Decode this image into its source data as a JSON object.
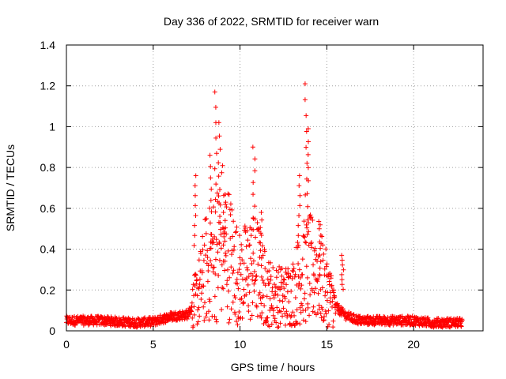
{
  "chart_data": {
    "type": "scatter",
    "title": "Day 336 of 2022, SRMTID for receiver warn",
    "xlabel": "GPS time / hours",
    "ylabel": "SRMTID / TECUs",
    "xlim": [
      0,
      24
    ],
    "ylim": [
      0,
      1.4
    ],
    "xticks": [
      0,
      5,
      10,
      15,
      20
    ],
    "yticks": [
      0,
      0.2,
      0.4,
      0.6,
      0.8,
      1.0,
      1.2,
      1.4
    ],
    "ytick_labels": [
      "0",
      "0.2",
      "0.4",
      "0.6",
      "0.8",
      "1",
      "1.2",
      "1.4"
    ],
    "grid": true,
    "marker": "+",
    "series": [
      {
        "name": "SRMTID",
        "color": "#ff0000",
        "profile": {
          "x": [
            0,
            1,
            2,
            3,
            4,
            5,
            6,
            7,
            7.6,
            8,
            8.5,
            9,
            9.5,
            10,
            10.5,
            11,
            11.5,
            12,
            12.5,
            13,
            13.5,
            14,
            14.5,
            15,
            15.5,
            16,
            16.5,
            17,
            18,
            19,
            20,
            21,
            22,
            22.8
          ],
          "y": [
            0.05,
            0.05,
            0.05,
            0.045,
            0.04,
            0.045,
            0.07,
            0.08,
            0.18,
            0.3,
            0.35,
            0.45,
            0.35,
            0.25,
            0.3,
            0.3,
            0.2,
            0.17,
            0.17,
            0.18,
            0.28,
            0.3,
            0.3,
            0.2,
            0.12,
            0.08,
            0.06,
            0.05,
            0.05,
            0.05,
            0.05,
            0.04,
            0.04,
            0.04
          ]
        },
        "peaks": [
          {
            "x": 7.4,
            "y": 0.76
          },
          {
            "x": 8.3,
            "y": 0.86
          },
          {
            "x": 8.6,
            "y": 1.17
          },
          {
            "x": 8.8,
            "y": 1.02
          },
          {
            "x": 9.1,
            "y": 0.62
          },
          {
            "x": 10.8,
            "y": 0.9
          },
          {
            "x": 11.2,
            "y": 0.58
          },
          {
            "x": 13.4,
            "y": 0.76
          },
          {
            "x": 13.8,
            "y": 1.21
          },
          {
            "x": 13.9,
            "y": 0.99
          },
          {
            "x": 14.6,
            "y": 0.5
          },
          {
            "x": 15.9,
            "y": 0.37
          }
        ]
      }
    ]
  }
}
